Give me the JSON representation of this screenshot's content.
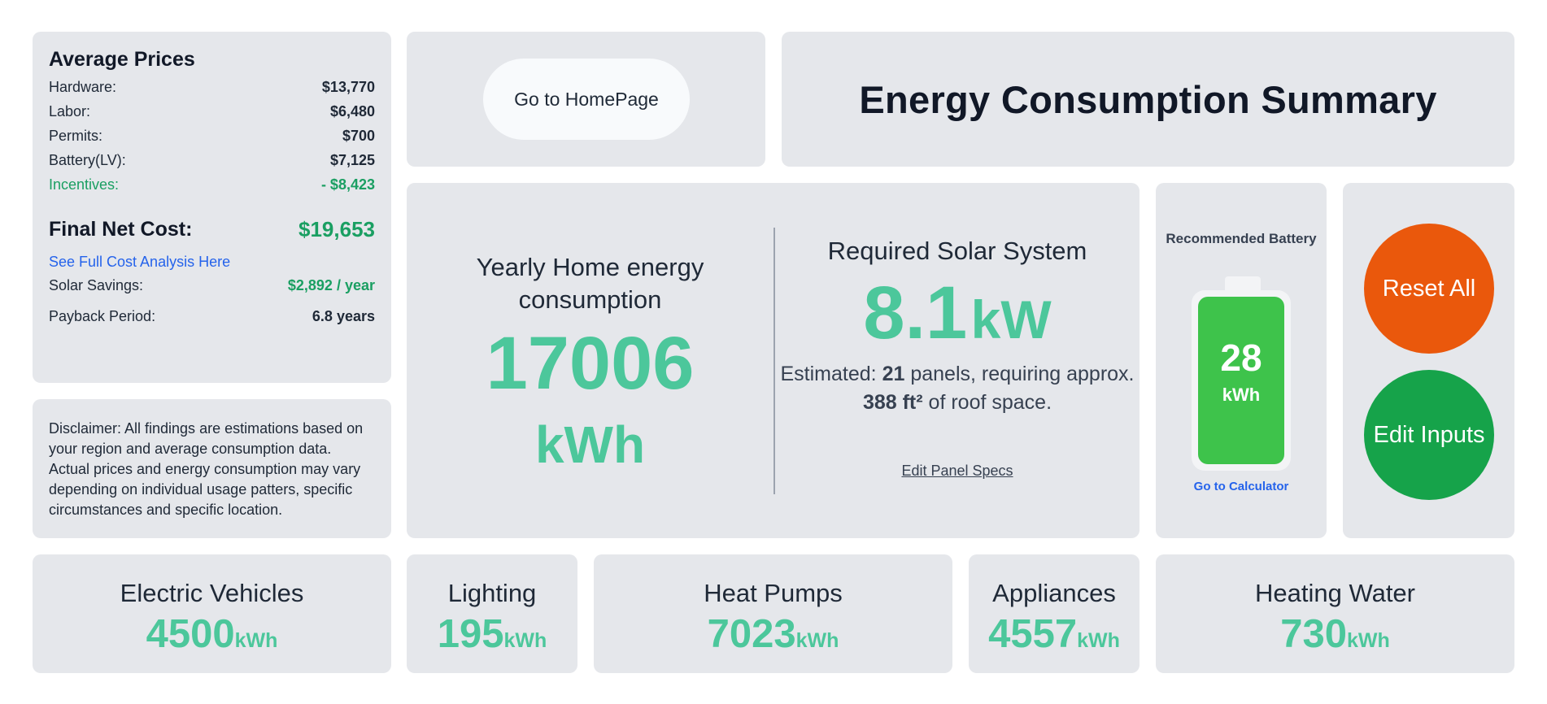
{
  "prices": {
    "title": "Average Prices",
    "rows": [
      {
        "label": "Hardware:",
        "value": "$13,770"
      },
      {
        "label": "Labor:",
        "value": "$6,480"
      },
      {
        "label": "Permits:",
        "value": "$700"
      },
      {
        "label": "Battery(LV):",
        "value": "$7,125"
      }
    ],
    "incentives": {
      "label": "Incentives:",
      "value": "- $8,423"
    },
    "final": {
      "label": "Final Net Cost:",
      "value": "$19,653"
    },
    "analysis_link": "See Full Cost Analysis Here",
    "savings": {
      "label": "Solar Savings:",
      "value": "$2,892 / year"
    },
    "payback": {
      "label": "Payback Period:",
      "value": "6.8 years"
    }
  },
  "disclaimer": "Disclaimer: All findings are estimations based on your region and average consumption data. Actual prices and energy consumption may vary depending on individual usage patters, specific circumstances and specific location.",
  "home_button": "Go to HomePage",
  "title": "Energy Consumption Summary",
  "yearly": {
    "label": "Yearly Home energy consumption",
    "value": "17006",
    "unit": "kWh"
  },
  "solar": {
    "label": "Required Solar System",
    "value": "8.1",
    "unit": "kW",
    "est_prefix": "Estimated:",
    "panels": "21",
    "est_mid": "panels, requiring approx.",
    "area": "388 ft²",
    "est_suffix": "of roof space.",
    "edit_link": "Edit Panel Specs"
  },
  "battery": {
    "label": "Recommended Battery",
    "value": "28",
    "unit": "kWh",
    "calc_link": "Go to Calculator"
  },
  "actions": {
    "reset": "Reset All",
    "edit": "Edit Inputs"
  },
  "categories": [
    {
      "name": "Electric Vehicles",
      "value": "4500",
      "unit": "kWh"
    },
    {
      "name": "Lighting",
      "value": "195",
      "unit": "kWh"
    },
    {
      "name": "Heat Pumps",
      "value": "7023",
      "unit": "kWh"
    },
    {
      "name": "Appliances",
      "value": "4557",
      "unit": "kWh"
    },
    {
      "name": "Heating Water",
      "value": "730",
      "unit": "kWh"
    }
  ],
  "colors": {
    "card_bg": "#e5e7eb",
    "accent_green": "#4cc79b",
    "cost_green": "#1a9f62",
    "reset_orange": "#ea580c",
    "edit_green": "#16a34a",
    "battery_green": "#3ec34b",
    "link_blue": "#2563eb"
  }
}
